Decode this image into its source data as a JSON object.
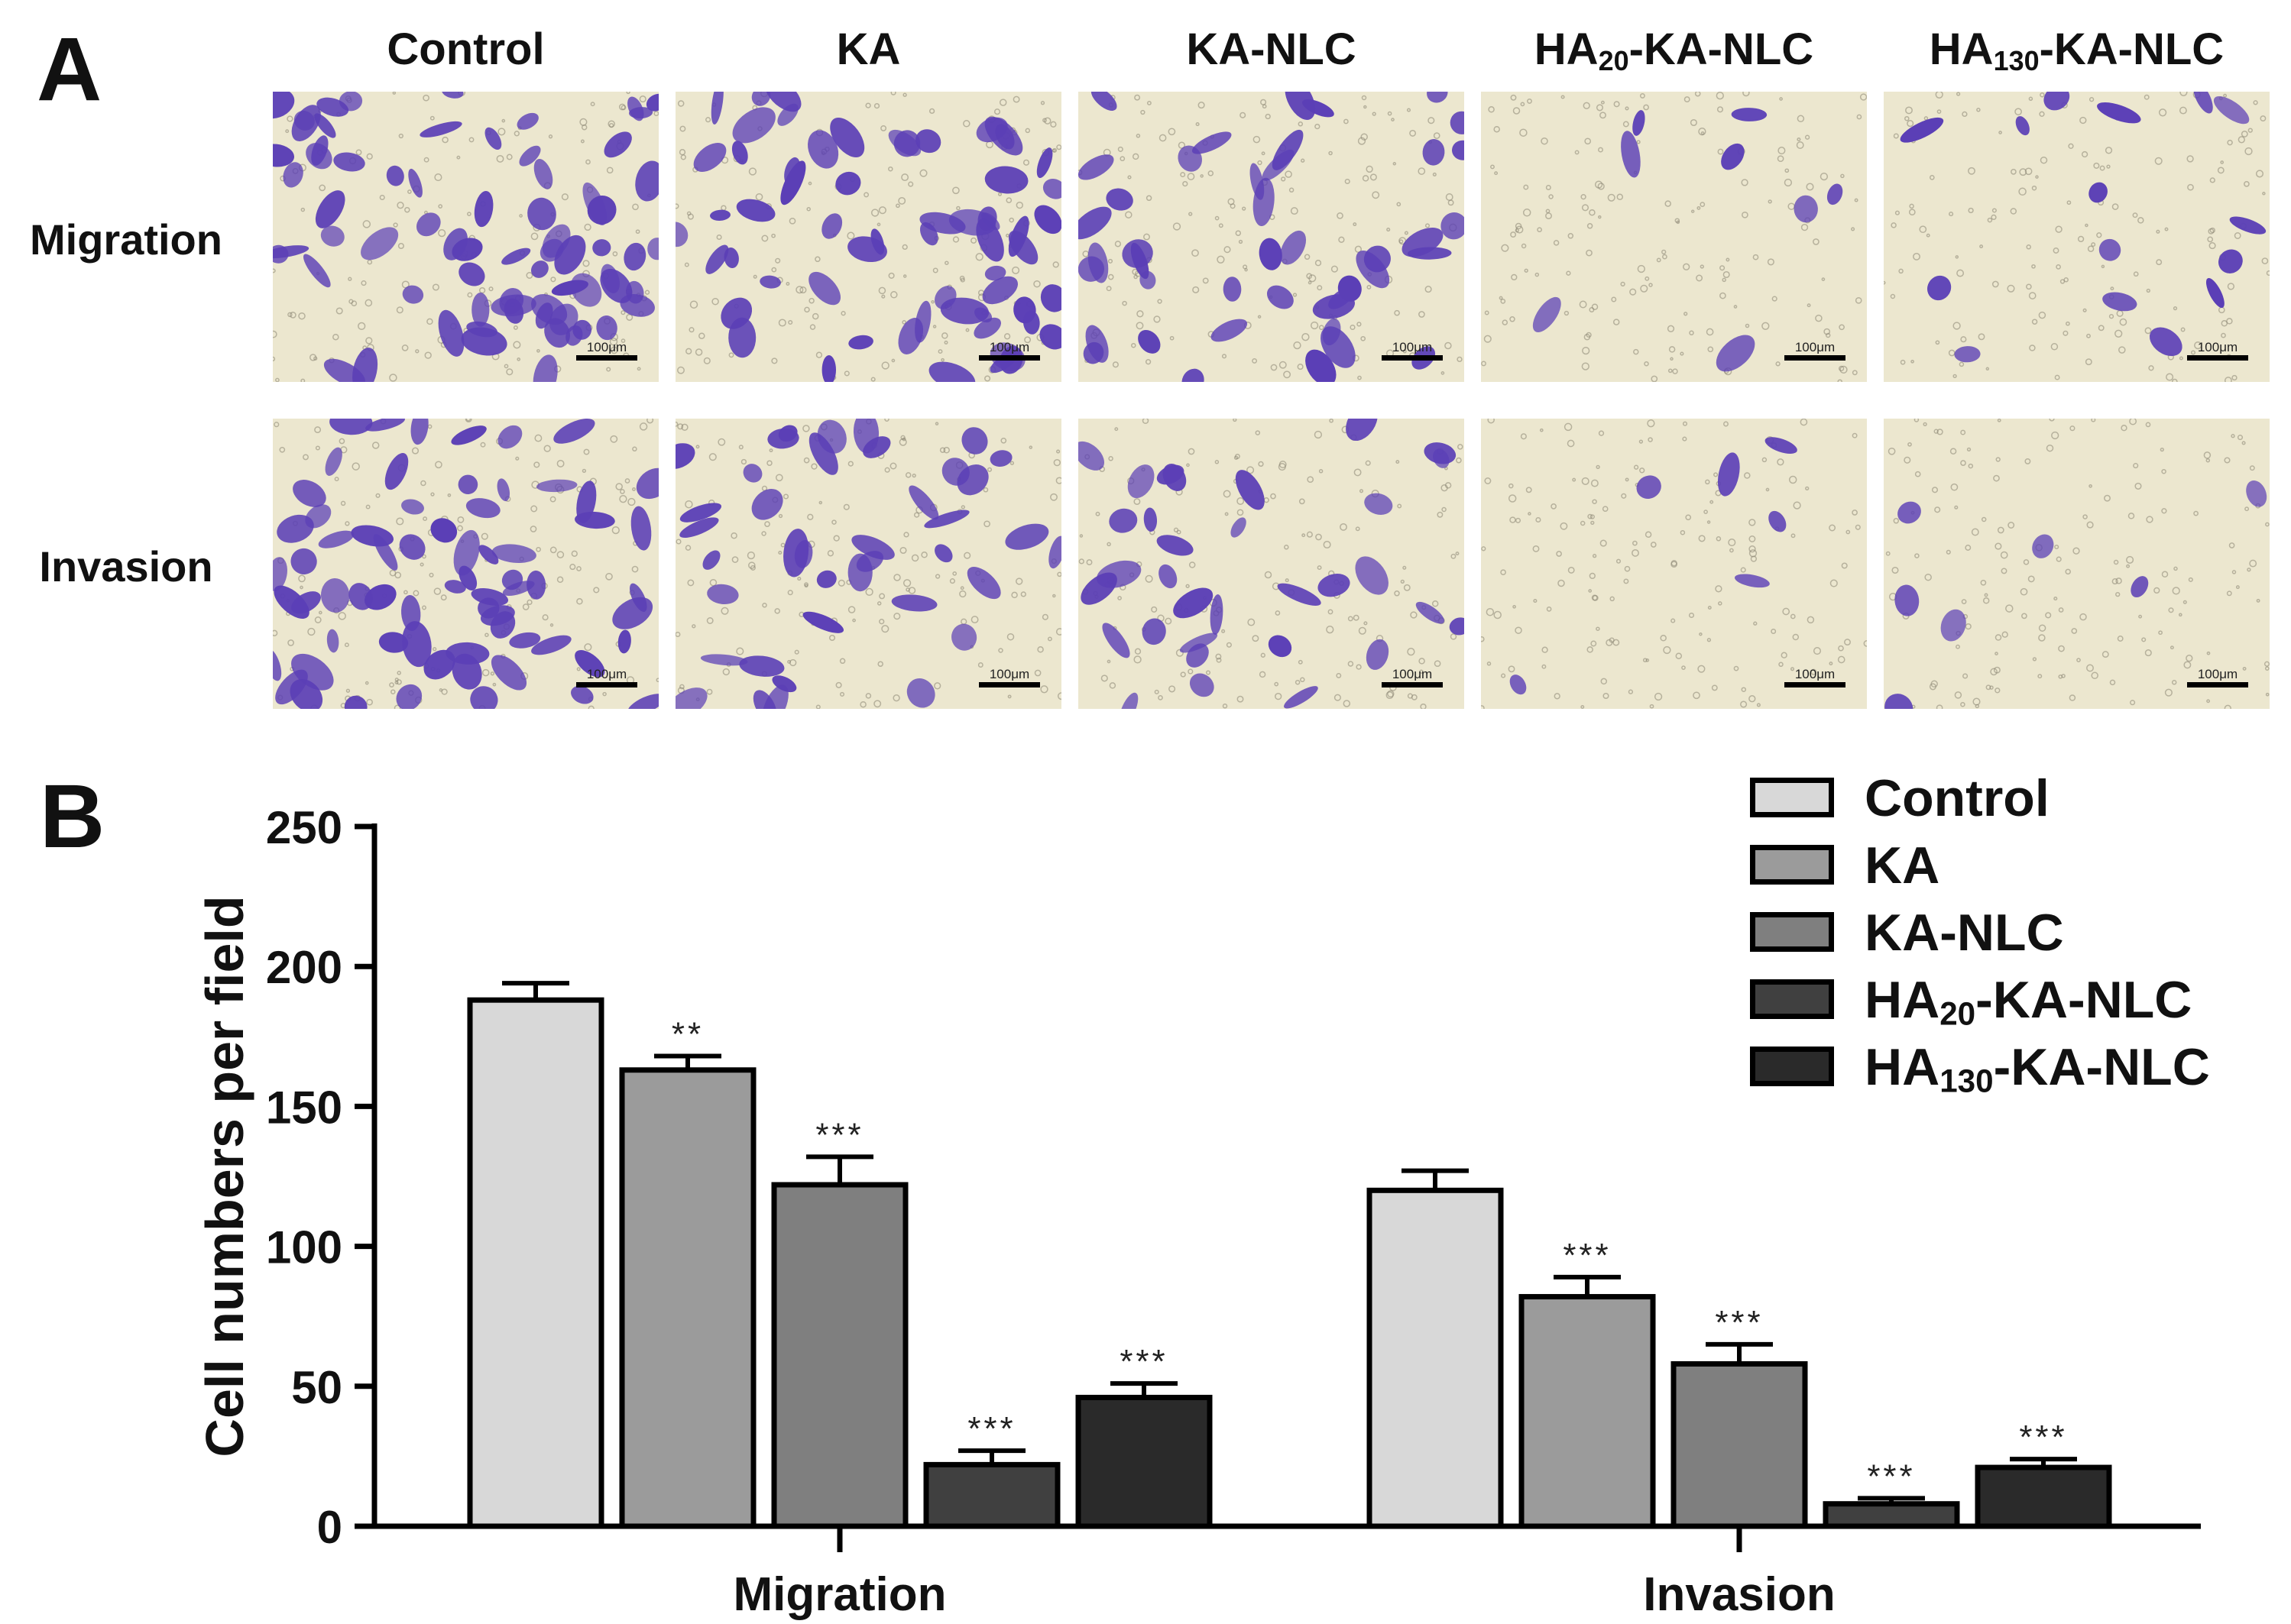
{
  "panel_a": {
    "letter": "A",
    "columns": [
      {
        "base": "Control",
        "sub": "",
        "suffix": ""
      },
      {
        "base": "KA",
        "sub": "",
        "suffix": ""
      },
      {
        "base": "KA-NLC",
        "sub": "",
        "suffix": ""
      },
      {
        "base": "HA",
        "sub": "20",
        "suffix": "-KA-NLC"
      },
      {
        "base": "HA",
        "sub": "130",
        "suffix": "-KA-NLC"
      }
    ],
    "rows": [
      "Migration",
      "Invasion"
    ],
    "scale_bar": "100μm",
    "cell_density": [
      [
        1.0,
        0.85,
        0.6,
        0.12,
        0.22
      ],
      [
        0.95,
        0.55,
        0.45,
        0.08,
        0.1
      ]
    ],
    "stain_color": "#5b3fb6",
    "background_color": "#ece7cf"
  },
  "panel_b": {
    "letter": "B",
    "colors": [
      "#d8d8d8",
      "#9b9b9b",
      "#7f7f7f",
      "#404040",
      "#2a2a2a"
    ],
    "chart_data": {
      "type": "bar",
      "categories": [
        "Migration",
        "Invasion"
      ],
      "ylabel": "Cell numbers per field",
      "xlabel": "",
      "ylim": [
        0,
        250
      ],
      "yticks": [
        0,
        50,
        100,
        150,
        200,
        250
      ],
      "series": [
        {
          "name": "Control",
          "name_sub": "",
          "name_suffix": "",
          "values": [
            188,
            120
          ],
          "errors": [
            6,
            7
          ],
          "sig": [
            "",
            ""
          ]
        },
        {
          "name": "KA",
          "name_sub": "",
          "name_suffix": "",
          "values": [
            163,
            82
          ],
          "errors": [
            5,
            7
          ],
          "sig": [
            "**",
            "***"
          ]
        },
        {
          "name": "KA-NLC",
          "name_sub": "",
          "name_suffix": "",
          "values": [
            122,
            58
          ],
          "errors": [
            10,
            7
          ],
          "sig": [
            "***",
            "***"
          ]
        },
        {
          "name": "HA",
          "name_sub": "20",
          "name_suffix": "-KA-NLC",
          "values": [
            22,
            8
          ],
          "errors": [
            5,
            2
          ],
          "sig": [
            "***",
            "***"
          ]
        },
        {
          "name": "HA",
          "name_sub": "130",
          "name_suffix": "-KA-NLC",
          "values": [
            46,
            21
          ],
          "errors": [
            5,
            3
          ],
          "sig": [
            "***",
            "***"
          ]
        }
      ],
      "legend_position": "top-right"
    }
  }
}
